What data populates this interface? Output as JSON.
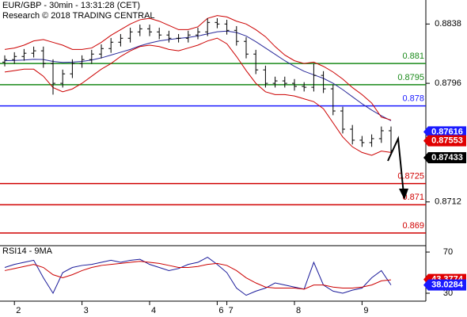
{
  "chart_data": [
    {
      "type": "ohlc",
      "title": "EUR/GBP - 30min - 13:31:28 (CET)",
      "subtitle": "Research © 2018 TRADING CENTRAL",
      "color": "#000000",
      "open": [
        0.8811,
        0.88128,
        0.8815,
        0.88173,
        0.8819,
        0.881,
        0.8796,
        0.88027,
        0.881,
        0.88128,
        0.88167,
        0.88206,
        0.88251,
        0.88279,
        0.88324,
        0.88346,
        0.88324,
        0.88302,
        0.88279,
        0.88279,
        0.88302,
        0.88324,
        0.88391,
        0.8838,
        0.88335,
        0.88257,
        0.88167,
        0.88055,
        0.8796,
        0.87977,
        0.8796,
        0.87938,
        0.87932,
        0.88016,
        0.87921,
        0.87764,
        0.87635,
        0.87557,
        0.8754,
        0.87568,
        0.87624
      ],
      "high": [
        0.88158,
        0.8818,
        0.88203,
        0.8822,
        0.8822,
        0.8813,
        0.88057,
        0.8813,
        0.88158,
        0.88197,
        0.88236,
        0.88281,
        0.88309,
        0.88354,
        0.88376,
        0.88376,
        0.88354,
        0.88332,
        0.88309,
        0.88332,
        0.88354,
        0.88421,
        0.88421,
        0.8841,
        0.88365,
        0.88287,
        0.88197,
        0.88085,
        0.88007,
        0.88007,
        0.8799,
        0.87968,
        0.881,
        0.88046,
        0.87951,
        0.87794,
        0.87665,
        0.87587,
        0.87598,
        0.87654,
        0.87654
      ],
      "low": [
        0.8808,
        0.88098,
        0.8812,
        0.88143,
        0.8807,
        0.8788,
        0.8793,
        0.87997,
        0.8807,
        0.88098,
        0.88137,
        0.88176,
        0.88221,
        0.88249,
        0.88294,
        0.88294,
        0.88272,
        0.88249,
        0.88249,
        0.88249,
        0.88272,
        0.88294,
        0.8835,
        0.88305,
        0.88227,
        0.88137,
        0.88025,
        0.8793,
        0.8793,
        0.8793,
        0.87908,
        0.87902,
        0.87902,
        0.87891,
        0.87734,
        0.87605,
        0.87527,
        0.8751,
        0.8751,
        0.87538,
        0.87454
      ],
      "close": [
        0.88128,
        0.8815,
        0.88173,
        0.8819,
        0.881,
        0.8796,
        0.88027,
        0.881,
        0.88128,
        0.88167,
        0.88206,
        0.88251,
        0.88279,
        0.88324,
        0.88346,
        0.88324,
        0.88302,
        0.88279,
        0.88279,
        0.88302,
        0.88324,
        0.88391,
        0.8838,
        0.88335,
        0.88257,
        0.88167,
        0.88055,
        0.8796,
        0.87977,
        0.8796,
        0.87938,
        0.87932,
        0.88016,
        0.87921,
        0.87764,
        0.87635,
        0.87557,
        0.8754,
        0.87568,
        0.87624,
        0.87484
      ],
      "overlays": [
        {
          "color": "#2a2a9a",
          "values": [
            0.8812,
            0.88122,
            0.88125,
            0.8813,
            0.88128,
            0.88115,
            0.88108,
            0.8811,
            0.88115,
            0.88125,
            0.8814,
            0.8816,
            0.8818,
            0.882,
            0.88225,
            0.88245,
            0.8826,
            0.8827,
            0.88278,
            0.88285,
            0.88295,
            0.8831,
            0.88325,
            0.8833,
            0.8832,
            0.88295,
            0.88255,
            0.8821,
            0.88165,
            0.8812,
            0.8808,
            0.88045,
            0.8802,
            0.87995,
            0.8796,
            0.87915,
            0.87865,
            0.87815,
            0.8777,
            0.8773,
            0.87695
          ]
        },
        {
          "color": "#cc0000",
          "values": [
            0.882,
            0.8821,
            0.8823,
            0.8826,
            0.8827,
            0.8825,
            0.8823,
            0.882,
            0.882,
            0.8821,
            0.8825,
            0.883,
            0.8834,
            0.8838,
            0.8841,
            0.8842,
            0.884,
            0.8837,
            0.8834,
            0.8834,
            0.8836,
            0.8842,
            0.8844,
            0.8843,
            0.884,
            0.8838,
            0.8834,
            0.8829,
            0.8822,
            0.8816,
            0.8812,
            0.881,
            0.8811,
            0.8808,
            0.8804,
            0.8799,
            0.8793,
            0.8788,
            0.8782,
            0.8772,
            0.877
          ]
        },
        {
          "color": "#cc0000",
          "values": [
            0.8804,
            0.8805,
            0.8806,
            0.8806,
            0.8801,
            0.8793,
            0.879,
            0.8792,
            0.8796,
            0.8801,
            0.8806,
            0.881,
            0.8815,
            0.8819,
            0.8822,
            0.8823,
            0.8822,
            0.882,
            0.8819,
            0.8821,
            0.8823,
            0.8826,
            0.8828,
            0.8824,
            0.8815,
            0.8805,
            0.8796,
            0.879,
            0.8788,
            0.8788,
            0.8787,
            0.8785,
            0.8783,
            0.8778,
            0.8768,
            0.8758,
            0.8751,
            0.8747,
            0.8745,
            0.8748,
            0.8747
          ]
        }
      ],
      "levels": [
        {
          "value": 0.881,
          "color": "#1a8a1a"
        },
        {
          "value": 0.8795,
          "color": "#1a8a1a"
        },
        {
          "value": 0.878,
          "color": "#1a1aff"
        },
        {
          "value": 0.8725,
          "color": "#d00000"
        },
        {
          "value": 0.871,
          "color": "#d00000"
        },
        {
          "value": 0.869,
          "color": "#d00000"
        }
      ],
      "markers": [
        {
          "value": 0.87616,
          "color": "#1a1aff"
        },
        {
          "value": 0.87553,
          "color": "#e00000"
        },
        {
          "value": 0.87433,
          "color": "#000000"
        }
      ],
      "ylim": [
        0.8681,
        0.8855
      ],
      "yticks": [
        0.8838,
        0.8796,
        0.8712
      ]
    },
    {
      "type": "line",
      "title": "RSI14 - 9MA",
      "categories": [
        null,
        "2",
        null,
        null,
        null,
        null,
        null,
        null,
        "3",
        null,
        null,
        null,
        null,
        null,
        null,
        "4",
        null,
        null,
        null,
        null,
        null,
        null,
        "6",
        "7",
        null,
        null,
        null,
        null,
        null,
        null,
        "8",
        null,
        null,
        null,
        null,
        null,
        null,
        "9",
        null,
        null,
        null
      ],
      "series": [
        {
          "color": "#1a1a9a",
          "values": [
            55,
            58,
            60,
            62,
            45,
            30,
            50,
            55,
            57,
            58,
            60,
            62,
            60,
            62,
            63,
            58,
            55,
            52,
            54,
            58,
            60,
            65,
            58,
            50,
            35,
            28,
            32,
            35,
            40,
            38,
            36,
            34,
            60,
            38,
            32,
            30,
            33,
            35,
            45,
            52,
            38
          ]
        },
        {
          "color": "#cc0000",
          "values": [
            52,
            54,
            56,
            58,
            55,
            48,
            45,
            48,
            52,
            55,
            57,
            58,
            59,
            60,
            61,
            60,
            59,
            57,
            55,
            55,
            56,
            58,
            59,
            57,
            52,
            45,
            40,
            36,
            35,
            35,
            35,
            34,
            38,
            38,
            36,
            35,
            35,
            36,
            38,
            42,
            43
          ]
        }
      ],
      "markers": [
        {
          "value": 43.3774,
          "color": "#e00000"
        },
        {
          "value": 38.0284,
          "color": "#1a1aff"
        }
      ],
      "ylim": [
        22.3,
        76.2
      ],
      "yticks": [
        70,
        30
      ]
    }
  ]
}
